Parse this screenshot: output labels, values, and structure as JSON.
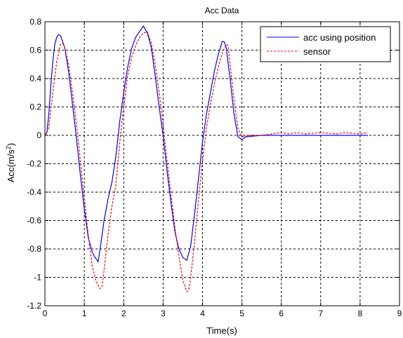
{
  "chart_data": {
    "type": "line",
    "title": "Acc Data",
    "xlabel": "Time(s)",
    "ylabel_base": "Acc(m/s",
    "ylabel_sup": "2",
    "ylabel_close": ")",
    "xlim": [
      0,
      9
    ],
    "ylim": [
      -1.2,
      0.8
    ],
    "xticks": [
      0,
      1,
      2,
      3,
      4,
      5,
      6,
      7,
      8,
      9
    ],
    "yticks": [
      0.8,
      0.6,
      0.4,
      0.2,
      0,
      -0.2,
      -0.4,
      -0.6,
      -0.8,
      -1,
      -1.2
    ],
    "xtick_labels": [
      "0",
      "1",
      "2",
      "3",
      "4",
      "5",
      "6",
      "7",
      "8",
      "9"
    ],
    "ytick_labels": [
      "0.8",
      "0.6",
      "0.4",
      "0.2",
      "0",
      "-0.2",
      "-0.4",
      "-0.6",
      "-0.8",
      "-1",
      "-1.2"
    ],
    "grid": true,
    "legend_position": "top-right",
    "series": [
      {
        "name": "acc using position",
        "color": "#0000ff",
        "style": "solid",
        "points": [
          [
            0,
            0
          ],
          [
            0.05,
            0.02
          ],
          [
            0.1,
            0.15
          ],
          [
            0.15,
            0.35
          ],
          [
            0.2,
            0.52
          ],
          [
            0.25,
            0.64
          ],
          [
            0.3,
            0.69
          ],
          [
            0.35,
            0.71
          ],
          [
            0.4,
            0.7
          ],
          [
            0.5,
            0.62
          ],
          [
            0.6,
            0.45
          ],
          [
            0.7,
            0.22
          ],
          [
            0.8,
            -0.02
          ],
          [
            0.9,
            -0.28
          ],
          [
            1.0,
            -0.52
          ],
          [
            1.1,
            -0.72
          ],
          [
            1.2,
            -0.82
          ],
          [
            1.25,
            -0.85
          ],
          [
            1.3,
            -0.87
          ],
          [
            1.35,
            -0.89
          ],
          [
            1.4,
            -0.8
          ],
          [
            1.5,
            -0.6
          ],
          [
            1.6,
            -0.45
          ],
          [
            1.7,
            -0.33
          ],
          [
            1.8,
            -0.15
          ],
          [
            1.9,
            0.1
          ],
          [
            2.0,
            0.3
          ],
          [
            2.1,
            0.48
          ],
          [
            2.2,
            0.61
          ],
          [
            2.3,
            0.69
          ],
          [
            2.4,
            0.73
          ],
          [
            2.5,
            0.77
          ],
          [
            2.6,
            0.72
          ],
          [
            2.7,
            0.62
          ],
          [
            2.8,
            0.42
          ],
          [
            2.9,
            0.2
          ],
          [
            3.0,
            0.0
          ],
          [
            3.1,
            -0.25
          ],
          [
            3.2,
            -0.48
          ],
          [
            3.3,
            -0.68
          ],
          [
            3.4,
            -0.8
          ],
          [
            3.5,
            -0.86
          ],
          [
            3.6,
            -0.88
          ],
          [
            3.7,
            -0.78
          ],
          [
            3.8,
            -0.55
          ],
          [
            3.9,
            -0.3
          ],
          [
            4.0,
            -0.05
          ],
          [
            4.1,
            0.15
          ],
          [
            4.2,
            0.3
          ],
          [
            4.3,
            0.45
          ],
          [
            4.4,
            0.57
          ],
          [
            4.5,
            0.66
          ],
          [
            4.55,
            0.66
          ],
          [
            4.6,
            0.62
          ],
          [
            4.7,
            0.4
          ],
          [
            4.8,
            0.15
          ],
          [
            4.9,
            -0.01
          ],
          [
            5.0,
            -0.03
          ],
          [
            5.1,
            -0.01
          ],
          [
            5.5,
            0.0
          ],
          [
            6.0,
            0.0
          ],
          [
            7.0,
            0.0
          ],
          [
            8.0,
            0.0
          ],
          [
            8.2,
            0.0
          ]
        ]
      },
      {
        "name": "sensor",
        "color": "#ff0000",
        "style": "dashed",
        "points": [
          [
            0,
            0
          ],
          [
            0.1,
            0.05
          ],
          [
            0.2,
            0.3
          ],
          [
            0.3,
            0.52
          ],
          [
            0.4,
            0.64
          ],
          [
            0.45,
            0.65
          ],
          [
            0.5,
            0.62
          ],
          [
            0.6,
            0.5
          ],
          [
            0.7,
            0.3
          ],
          [
            0.8,
            0.08
          ],
          [
            0.9,
            -0.18
          ],
          [
            1.0,
            -0.45
          ],
          [
            1.1,
            -0.7
          ],
          [
            1.2,
            -0.92
          ],
          [
            1.3,
            -1.03
          ],
          [
            1.4,
            -1.08
          ],
          [
            1.45,
            -1.06
          ],
          [
            1.5,
            -0.95
          ],
          [
            1.6,
            -0.7
          ],
          [
            1.7,
            -0.5
          ],
          [
            1.8,
            -0.35
          ],
          [
            1.9,
            -0.05
          ],
          [
            2.0,
            0.2
          ],
          [
            2.1,
            0.42
          ],
          [
            2.2,
            0.55
          ],
          [
            2.3,
            0.63
          ],
          [
            2.4,
            0.69
          ],
          [
            2.5,
            0.72
          ],
          [
            2.6,
            0.73
          ],
          [
            2.7,
            0.65
          ],
          [
            2.8,
            0.5
          ],
          [
            2.9,
            0.3
          ],
          [
            3.0,
            0.08
          ],
          [
            3.1,
            -0.18
          ],
          [
            3.2,
            -0.42
          ],
          [
            3.3,
            -0.65
          ],
          [
            3.4,
            -0.85
          ],
          [
            3.5,
            -1.02
          ],
          [
            3.6,
            -1.1
          ],
          [
            3.65,
            -1.09
          ],
          [
            3.7,
            -1.0
          ],
          [
            3.8,
            -0.75
          ],
          [
            3.9,
            -0.45
          ],
          [
            4.0,
            -0.18
          ],
          [
            4.1,
            0.05
          ],
          [
            4.2,
            0.22
          ],
          [
            4.3,
            0.36
          ],
          [
            4.4,
            0.48
          ],
          [
            4.5,
            0.58
          ],
          [
            4.6,
            0.64
          ],
          [
            4.65,
            0.63
          ],
          [
            4.7,
            0.5
          ],
          [
            4.8,
            0.25
          ],
          [
            4.9,
            0.05
          ],
          [
            5.0,
            -0.01
          ],
          [
            5.2,
            0.0
          ],
          [
            5.5,
            0.0
          ],
          [
            6.0,
            0.02
          ],
          [
            6.2,
            0.01
          ],
          [
            6.4,
            0.02
          ],
          [
            6.6,
            0.01
          ],
          [
            7.0,
            0.02
          ],
          [
            7.4,
            0.01
          ],
          [
            7.6,
            0.02
          ],
          [
            8.0,
            0.01
          ],
          [
            8.2,
            0.02
          ]
        ]
      }
    ]
  }
}
